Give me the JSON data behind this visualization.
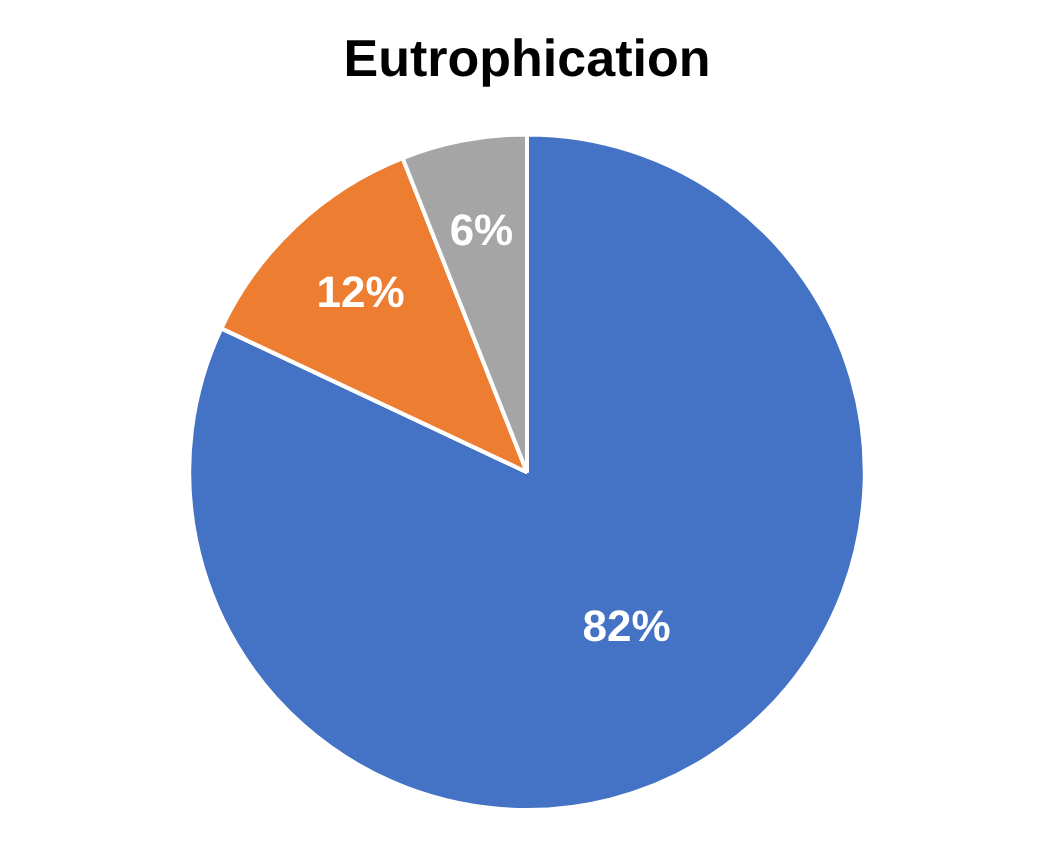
{
  "chart_data": {
    "type": "pie",
    "title": "Eutrophication",
    "categories": [
      null,
      null,
      null
    ],
    "values": [
      82,
      12,
      6
    ],
    "colors": [
      "#4472c4",
      "#ed7d31",
      "#a5a5a5"
    ],
    "value_labels": [
      "82%",
      "12%",
      "6%"
    ],
    "legend": false
  }
}
